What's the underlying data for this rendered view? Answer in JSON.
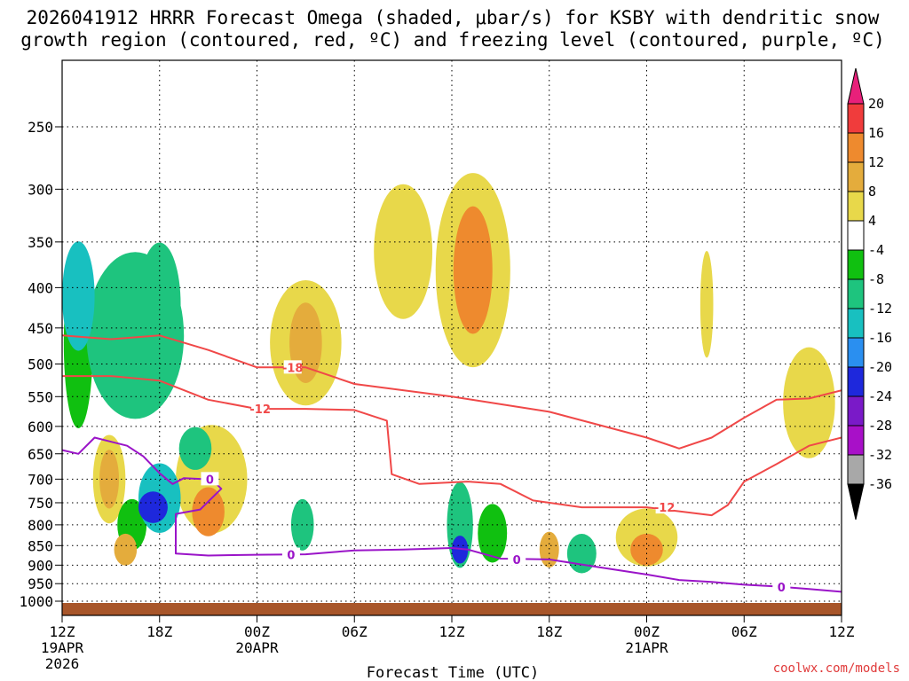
{
  "chart_data": {
    "type": "heatmap",
    "title_line1": "2026041912 HRRR Forecast Omega (shaded, μbar/s) for KSBY with dendritic snow",
    "title_line2": "growth region (contoured, red, ºC) and freezing level (contoured, purple, ºC)",
    "xlabel": "Forecast Time (UTC)",
    "xlim_hours": [
      0,
      48
    ],
    "x_ticks": [
      {
        "hour": 0,
        "label": "12Z",
        "sub1": "19APR",
        "sub2": "2026"
      },
      {
        "hour": 6,
        "label": "18Z",
        "sub1": "",
        "sub2": ""
      },
      {
        "hour": 12,
        "label": "00Z",
        "sub1": "20APR",
        "sub2": ""
      },
      {
        "hour": 18,
        "label": "06Z",
        "sub1": "",
        "sub2": ""
      },
      {
        "hour": 24,
        "label": "12Z",
        "sub1": "",
        "sub2": ""
      },
      {
        "hour": 30,
        "label": "18Z",
        "sub1": "",
        "sub2": ""
      },
      {
        "hour": 36,
        "label": "00Z",
        "sub1": "21APR",
        "sub2": ""
      },
      {
        "hour": 42,
        "label": "06Z",
        "sub1": "",
        "sub2": ""
      },
      {
        "hour": 48,
        "label": "12Z",
        "sub1": "",
        "sub2": ""
      }
    ],
    "y_ticks_hpa": [
      250,
      300,
      350,
      400,
      450,
      500,
      550,
      600,
      650,
      700,
      750,
      800,
      850,
      900,
      950,
      1000
    ],
    "ylim_hpa": [
      200,
      1030
    ],
    "colorbar": {
      "labels": [
        "20",
        "16",
        "12",
        "8",
        "4",
        "-4",
        "-8",
        "-12",
        "-16",
        "-20",
        "-24",
        "-28",
        "-32",
        "-36"
      ],
      "colors": [
        "#e8207a",
        "#f03c3c",
        "#ee8a2e",
        "#e4ac3c",
        "#e8d84a",
        "#ffffff",
        "#10c010",
        "#1ec47e",
        "#18c0c0",
        "#2a8ff0",
        "#1e28dc",
        "#7a1ac8",
        "#a810c8",
        "#a8a8a8",
        "#000000"
      ]
    },
    "dendritic_isotherms": [
      {
        "label": "-18",
        "points": [
          [
            0,
            460
          ],
          [
            3,
            465
          ],
          [
            6,
            460
          ],
          [
            9,
            480
          ],
          [
            12,
            505
          ],
          [
            15,
            505
          ],
          [
            18,
            530
          ],
          [
            24,
            550
          ],
          [
            30,
            575
          ],
          [
            36,
            620
          ],
          [
            38,
            640
          ],
          [
            40,
            620
          ],
          [
            42,
            585
          ],
          [
            44,
            555
          ],
          [
            46,
            553
          ],
          [
            48,
            540
          ]
        ]
      },
      {
        "label": "-12",
        "points": [
          [
            0,
            518
          ],
          [
            3,
            518
          ],
          [
            6,
            525
          ],
          [
            9,
            555
          ],
          [
            12,
            570
          ],
          [
            15,
            570
          ],
          [
            18,
            572
          ],
          [
            20,
            590
          ],
          [
            20.3,
            690
          ],
          [
            22,
            710
          ],
          [
            25,
            705
          ],
          [
            27,
            710
          ],
          [
            29,
            745
          ],
          [
            32,
            760
          ],
          [
            36,
            760
          ],
          [
            40,
            778
          ],
          [
            41,
            755
          ],
          [
            42,
            705
          ],
          [
            44,
            670
          ],
          [
            46,
            635
          ],
          [
            48,
            620
          ]
        ]
      }
    ],
    "freezing_level": {
      "label": "0",
      "points": [
        [
          0,
          643
        ],
        [
          1,
          650
        ],
        [
          2,
          620
        ],
        [
          4,
          635
        ],
        [
          5,
          655
        ],
        [
          6,
          688
        ],
        [
          6.8,
          710
        ],
        [
          7.5,
          698
        ],
        [
          8.8,
          700
        ],
        [
          9.5,
          710
        ],
        [
          9.8,
          720
        ],
        [
          8.5,
          765
        ],
        [
          7,
          775
        ],
        [
          7,
          870
        ],
        [
          9,
          875
        ],
        [
          12,
          873
        ],
        [
          15,
          872
        ],
        [
          18,
          862
        ],
        [
          21,
          860
        ],
        [
          24,
          856
        ],
        [
          25,
          860
        ],
        [
          27,
          883
        ],
        [
          30,
          885
        ],
        [
          33,
          905
        ],
        [
          36,
          925
        ],
        [
          38,
          940
        ],
        [
          40,
          945
        ],
        [
          42,
          953
        ],
        [
          44,
          958
        ],
        [
          46,
          965
        ],
        [
          48,
          973
        ]
      ]
    },
    "omega_cells": [
      {
        "t": 1.0,
        "p": 410,
        "dt": 1.0,
        "dp": 130,
        "v": -14
      },
      {
        "t": 1.0,
        "p": 470,
        "dt": 0.9,
        "dp": 230,
        "v": -8
      },
      {
        "t": 4.5,
        "p": 460,
        "dt": 3.0,
        "dp": 220,
        "v": -10
      },
      {
        "t": 6.0,
        "p": 420,
        "dt": 1.3,
        "dp": 150,
        "v": -12
      },
      {
        "t": 6.0,
        "p": 740,
        "dt": 1.3,
        "dp": 150,
        "v": -16
      },
      {
        "t": 5.6,
        "p": 760,
        "dt": 0.9,
        "dp": 70,
        "v": -24
      },
      {
        "t": 4.3,
        "p": 800,
        "dt": 0.9,
        "dp": 120,
        "v": -8
      },
      {
        "t": 2.9,
        "p": 700,
        "dt": 1.0,
        "dp": 180,
        "v": 4
      },
      {
        "t": 2.9,
        "p": 700,
        "dt": 0.6,
        "dp": 120,
        "v": 8
      },
      {
        "t": 3.9,
        "p": 860,
        "dt": 0.7,
        "dp": 80,
        "v": 8
      },
      {
        "t": 9.0,
        "p": 770,
        "dt": 1.0,
        "dp": 110,
        "v": 12
      },
      {
        "t": 9.2,
        "p": 700,
        "dt": 2.2,
        "dp": 220,
        "v": 4
      },
      {
        "t": 8.2,
        "p": 640,
        "dt": 1.0,
        "dp": 80,
        "v": -12
      },
      {
        "t": 15.0,
        "p": 470,
        "dt": 2.2,
        "dp": 170,
        "v": 4
      },
      {
        "t": 15.0,
        "p": 470,
        "dt": 1.0,
        "dp": 110,
        "v": 8
      },
      {
        "t": 14.8,
        "p": 800,
        "dt": 0.7,
        "dp": 120,
        "v": -12
      },
      {
        "t": 21.0,
        "p": 360,
        "dt": 1.8,
        "dp": 140,
        "v": 4
      },
      {
        "t": 25.3,
        "p": 380,
        "dt": 2.3,
        "dp": 210,
        "v": 4
      },
      {
        "t": 25.3,
        "p": 380,
        "dt": 1.2,
        "dp": 140,
        "v": 12
      },
      {
        "t": 24.5,
        "p": 800,
        "dt": 0.8,
        "dp": 200,
        "v": -10
      },
      {
        "t": 24.5,
        "p": 860,
        "dt": 0.5,
        "dp": 70,
        "v": -24
      },
      {
        "t": 26.5,
        "p": 820,
        "dt": 0.9,
        "dp": 140,
        "v": -8
      },
      {
        "t": 32.0,
        "p": 870,
        "dt": 0.9,
        "dp": 100,
        "v": -10
      },
      {
        "t": 30.0,
        "p": 860,
        "dt": 0.6,
        "dp": 90,
        "v": 8
      },
      {
        "t": 36.0,
        "p": 830,
        "dt": 1.9,
        "dp": 140,
        "v": 4
      },
      {
        "t": 36.0,
        "p": 860,
        "dt": 1.0,
        "dp": 80,
        "v": 12
      },
      {
        "t": 39.7,
        "p": 420,
        "dt": 0.4,
        "dp": 130,
        "v": 4
      },
      {
        "t": 46.0,
        "p": 560,
        "dt": 1.6,
        "dp": 180,
        "v": 4
      }
    ]
  },
  "credit": "coolwx.com/models"
}
